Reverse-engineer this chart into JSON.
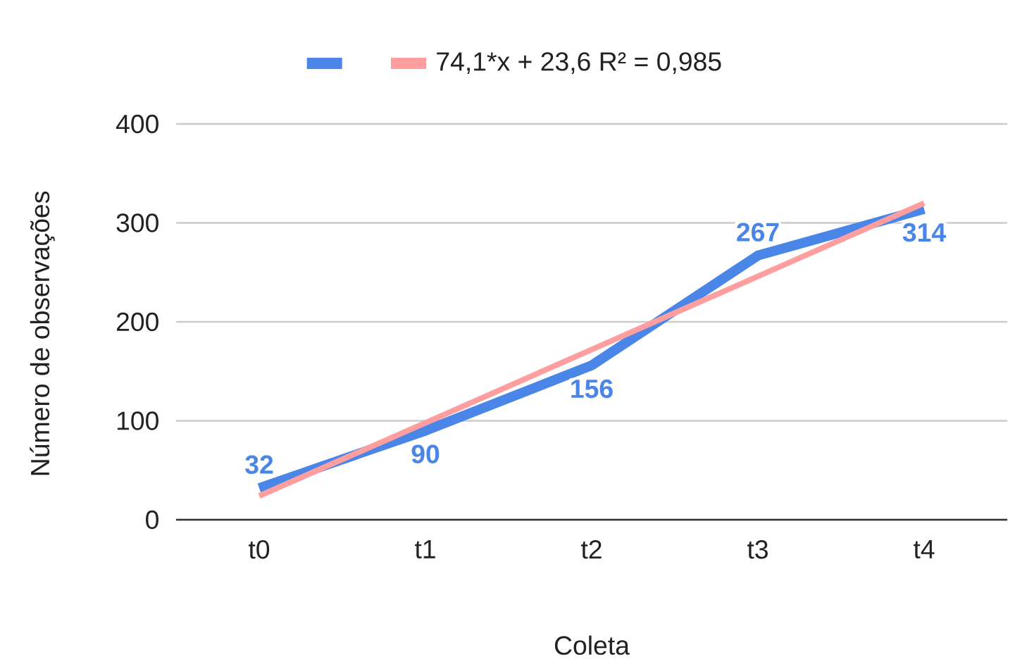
{
  "chart_data": {
    "type": "line",
    "xlabel": "Coleta",
    "ylabel": "Número de observações",
    "categories": [
      "t0",
      "t1",
      "t2",
      "t3",
      "t4"
    ],
    "series": [
      {
        "color": "#4a86e8",
        "values": [
          32,
          90,
          156,
          267,
          314
        ],
        "value_labels": [
          "32",
          "90",
          "156",
          "267",
          "314"
        ]
      },
      {
        "type": "line",
        "name": "74,1*x + 23,6 R² = 0,985",
        "color": "#ff9e9e",
        "values": [
          24,
          98,
          172,
          246,
          320
        ]
      }
    ],
    "ylim": [
      0,
      400
    ],
    "yticks": [
      0,
      100,
      200,
      300,
      400
    ],
    "grid": "y",
    "legend": "top"
  }
}
